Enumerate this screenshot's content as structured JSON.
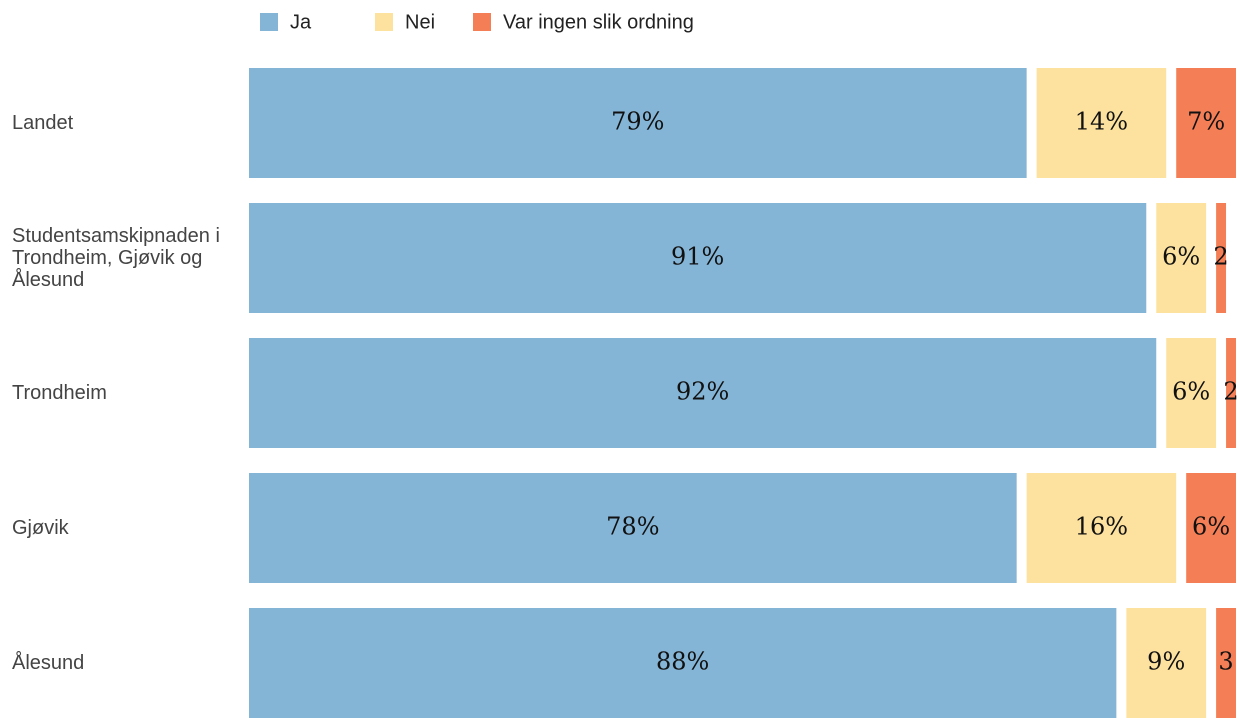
{
  "chart_data": {
    "type": "stacked-barh",
    "categories": [
      "Landet",
      "Studentsamskipnaden i Trondheim, Gjøvik og Ålesund",
      "Trondheim",
      "Gjøvik",
      "Ålesund"
    ],
    "series": [
      {
        "name": "Ja",
        "color": "#84b4d6",
        "values": [
          79,
          91,
          92,
          78,
          88
        ],
        "value_labels": [
          "79%",
          "91%",
          "92%",
          "78%",
          "88%"
        ]
      },
      {
        "name": "Nei",
        "color": "#fde29f",
        "values": [
          14,
          6,
          6,
          16,
          9
        ],
        "value_labels": [
          "14%",
          "6%",
          "6%",
          "16%",
          "9%"
        ]
      },
      {
        "name": "Var ingen slik ordning",
        "color": "#f47f56",
        "values": [
          7,
          2,
          2,
          6,
          3
        ],
        "value_labels": [
          "7%",
          "2",
          "2",
          "6%",
          "3"
        ]
      }
    ],
    "xlim": [
      0,
      100
    ],
    "legend": "top"
  }
}
